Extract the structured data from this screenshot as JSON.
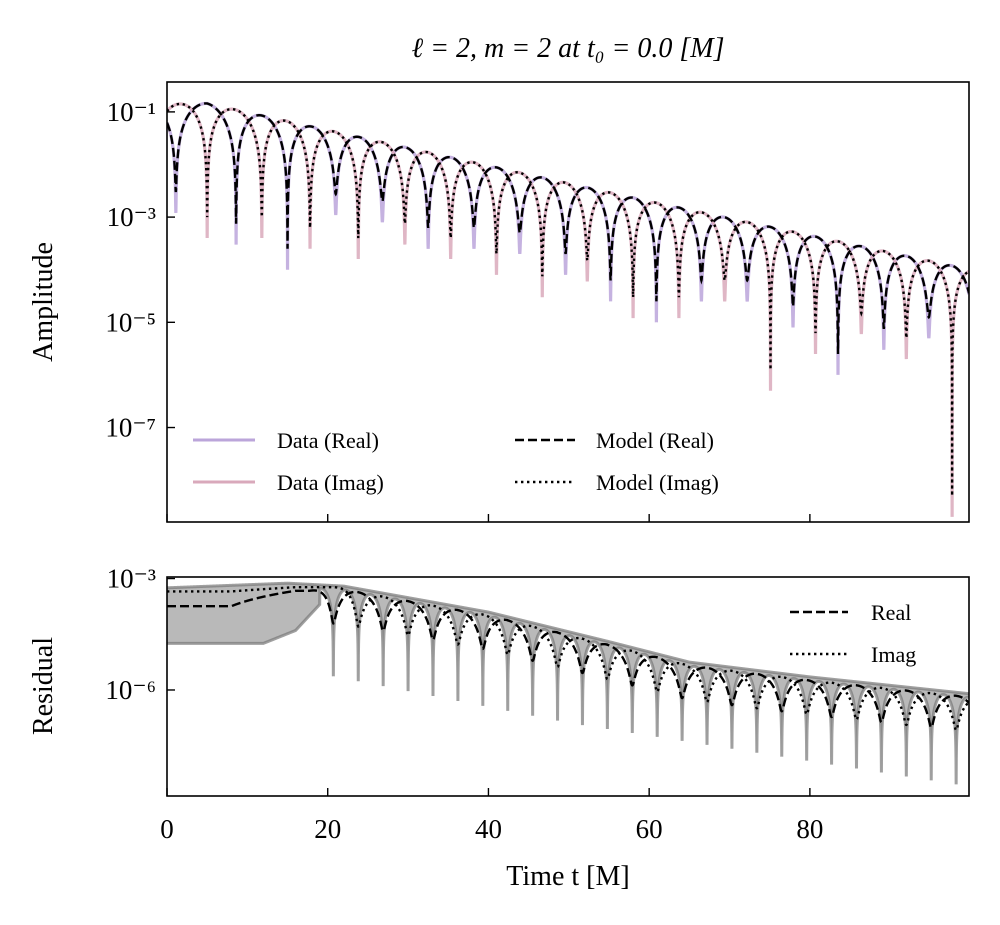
{
  "chart_data": [
    {
      "type": "line",
      "title": "ℓ = 2, m = 2 at t₀ = 0.0 [M]",
      "xlabel": "",
      "ylabel": "Amplitude",
      "xlim": [
        0,
        99.8
      ],
      "ylim": [
        1.6e-09,
        0.37
      ],
      "yscale": "log",
      "grid": false,
      "legend_placement": "lower-left",
      "yticks": [
        {
          "value": 0.1,
          "label": "10⁻¹"
        },
        {
          "value": 0.001,
          "label": "10⁻³"
        },
        {
          "value": 1e-05,
          "label": "10⁻⁵"
        },
        {
          "value": 1e-07,
          "label": "10⁻⁷"
        }
      ],
      "envelope": [
        [
          0,
          0.14
        ],
        [
          5,
          0.145
        ],
        [
          20,
          0.045
        ],
        [
          40,
          0.0095
        ],
        [
          60,
          0.002
        ],
        [
          80,
          0.00045
        ],
        [
          100,
          0.0001
        ]
      ],
      "series": [
        {
          "name": "Data (Real)",
          "color": "#bba5da",
          "style": "solid",
          "minima_t": [
            1.1,
            8.6,
            15.0,
            21.0,
            26.8,
            32.5,
            38.2,
            43.9,
            49.6,
            55.2,
            60.9,
            66.5,
            72.2,
            77.9,
            83.5,
            89.2,
            94.8
          ],
          "minima_value": [
            0.0012,
            0.0003,
            0.0001,
            0.0011,
            0.0008,
            0.00025,
            0.00025,
            0.0002,
            8e-05,
            2.5e-05,
            1e-05,
            2.5e-05,
            2.5e-05,
            8e-06,
            1e-06,
            3e-06,
            5e-06
          ]
        },
        {
          "name": "Data (Imag)",
          "color": "#d9a9bb",
          "style": "solid",
          "minima_t": [
            5.0,
            11.8,
            17.8,
            23.8,
            29.6,
            35.3,
            41.0,
            46.7,
            52.3,
            58.0,
            63.7,
            69.4,
            75.1,
            80.7,
            86.4,
            92.0,
            97.7
          ],
          "minima_value": [
            0.0004,
            0.0004,
            0.00025,
            0.00016,
            0.0003,
            0.00016,
            8e-05,
            3e-05,
            6e-05,
            1.2e-05,
            1.2e-05,
            2.5e-05,
            5e-07,
            2.5e-06,
            6e-06,
            2e-06,
            2e-09
          ]
        },
        {
          "name": "Model (Real)",
          "color": "#000000",
          "style": "dashed"
        },
        {
          "name": "Model (Imag)",
          "color": "#000000",
          "style": "dotted"
        }
      ]
    },
    {
      "type": "line",
      "xlabel": "Time t [M]",
      "ylabel": "Residual",
      "xlim": [
        0,
        99.8
      ],
      "ylim": [
        1.4e-09,
        0.0011
      ],
      "yscale": "log",
      "grid": false,
      "legend_placement": "upper-right",
      "xticks": [
        {
          "value": 0,
          "label": "0"
        },
        {
          "value": 20,
          "label": "20"
        },
        {
          "value": 40,
          "label": "40"
        },
        {
          "value": 60,
          "label": "60"
        },
        {
          "value": 80,
          "label": "80"
        }
      ],
      "yticks": [
        {
          "value": 0.001,
          "label": "10⁻³"
        },
        {
          "value": 1e-06,
          "label": "10⁻⁶"
        }
      ],
      "envelope": [
        [
          0,
          0.00045
        ],
        [
          15,
          0.0006
        ],
        [
          22,
          0.0005
        ],
        [
          40,
          0.0001
        ],
        [
          55,
          1.6e-05
        ],
        [
          65,
          4.5e-06
        ],
        [
          80,
          1.8e-06
        ],
        [
          100,
          6.3e-07
        ]
      ],
      "band": {
        "color": "#808080",
        "early_lower": [
          [
            0,
            1.8e-05
          ],
          [
            12,
            1.8e-05
          ],
          [
            16,
            4e-05
          ],
          [
            19,
            0.0002
          ]
        ],
        "minima_t_start": 20.7,
        "minima_spacing": 3.1,
        "minima_value": [
          [
            20,
            2.5e-06
          ],
          [
            50,
            1.3e-07
          ],
          [
            100,
            2.5e-09
          ]
        ]
      },
      "series": [
        {
          "name": "Real",
          "color": "#000000",
          "style": "dashed",
          "level_before_ringdown": 0.00018,
          "minima_t_start": 20.7,
          "minima_spacing": 6.2
        },
        {
          "name": "Imag",
          "color": "#000000",
          "style": "dotted",
          "level_before_ringdown": 0.00045,
          "minima_t_start": 23.8,
          "minima_spacing": 6.2
        }
      ]
    }
  ]
}
